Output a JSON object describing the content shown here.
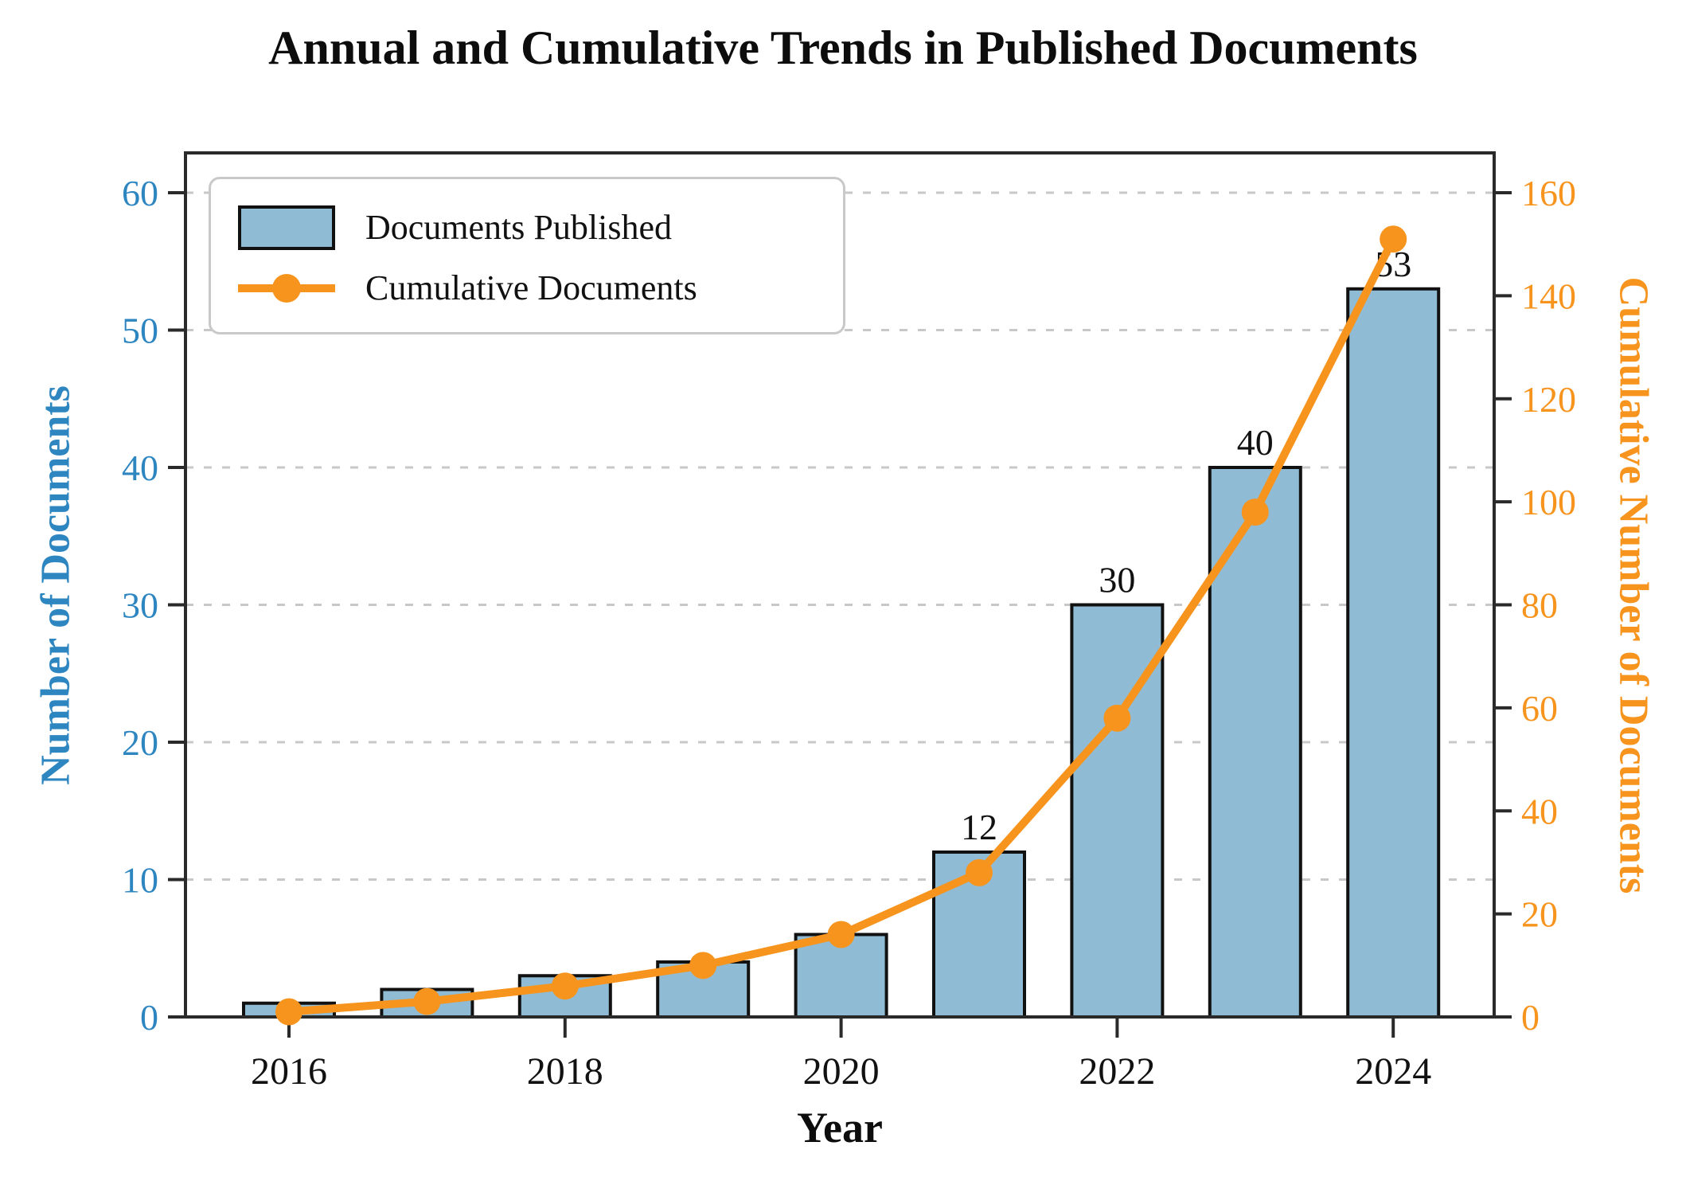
{
  "title": "Annual and Cumulative Trends in Published Documents",
  "xlabel": "Year",
  "ylabel_left": "Number of Documents",
  "ylabel_right": "Cumulative Number of Documents",
  "legend": {
    "items": [
      {
        "label": "Documents Published",
        "swatch": "bar"
      },
      {
        "label": "Cumulative Documents",
        "swatch": "line-with-marker"
      }
    ]
  },
  "chart_data": {
    "type": "bar",
    "subtype": "bar+line dual axis",
    "title": "Annual and Cumulative Trends in Published Documents",
    "categories": [
      "2016",
      "2017",
      "2018",
      "2019",
      "2020",
      "2021",
      "2022",
      "2023",
      "2024"
    ],
    "series": [
      {
        "name": "Documents Published",
        "type": "bar",
        "axis": "left",
        "values": [
          1,
          2,
          3,
          4,
          6,
          12,
          30,
          40,
          53
        ],
        "color": "#8FBCD4",
        "edge_color": "#111111"
      },
      {
        "name": "Cumulative Documents",
        "type": "line",
        "axis": "right",
        "values": [
          1,
          3,
          6,
          10,
          16,
          28,
          58,
          98,
          151
        ],
        "color": "#F7941E",
        "marker": "circle"
      }
    ],
    "bar_labels": [
      "",
      "",
      "",
      "",
      "",
      "12",
      "30",
      "40",
      "53"
    ],
    "xlabel": "Year",
    "ylabel_left": "Number of Documents",
    "ylabel_right": "Cumulative Number of Documents",
    "left_axis": {
      "min": 0,
      "max": 60,
      "ticks": [
        0,
        10,
        20,
        30,
        40,
        50,
        60
      ],
      "color": "#2E86C1"
    },
    "right_axis": {
      "min": 0,
      "max": 160,
      "ticks": [
        0,
        20,
        40,
        60,
        80,
        100,
        120,
        140,
        160
      ],
      "color": "#F7941E"
    },
    "x_tick_labels": [
      "2016",
      "2018",
      "2020",
      "2022",
      "2024"
    ],
    "grid": "horizontal dashed at left-axis ticks",
    "legend_position": "upper-left"
  }
}
